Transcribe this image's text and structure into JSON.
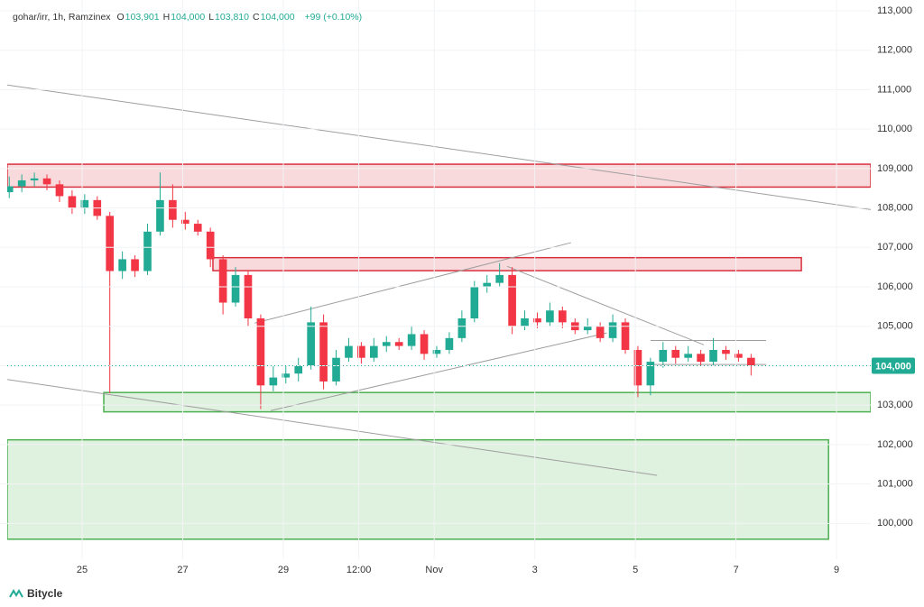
{
  "chart_data": {
    "type": "candlestick",
    "symbol": "gohar/irr, 1h, Ramzinex",
    "ohlc_header": [
      {
        "key": "O",
        "text": "103,901"
      },
      {
        "key": "H",
        "text": "104,000"
      },
      {
        "key": "L",
        "text": "103,810"
      },
      {
        "key": "C",
        "text": "104,000"
      }
    ],
    "change_text": "+99 (+0.10%)",
    "brand": "Bitycle",
    "up_color": "#22ab94",
    "down_color": "#f23645",
    "grid": true,
    "xlim": [
      23.51,
      40.68
    ],
    "xticks": [
      25,
      27,
      29,
      {
        "value": 30.5,
        "label": "12:00"
      },
      {
        "value": 32,
        "label": "Nov"
      },
      {
        "value": 34,
        "label": "3"
      },
      {
        "value": 36,
        "label": "5"
      },
      {
        "value": 38,
        "label": "7"
      },
      {
        "value": 40,
        "label": "9"
      }
    ],
    "ylim": [
      99550,
      113000
    ],
    "yticks": [
      {
        "value": 100000,
        "label": "100,000"
      },
      {
        "value": 101000,
        "label": "101,000"
      },
      {
        "value": 102000,
        "label": "102,000"
      },
      {
        "value": 103000,
        "label": "103,000"
      },
      {
        "value": 104000,
        "label": "104,000"
      },
      {
        "value": 105000,
        "label": "105,000"
      },
      {
        "value": 106000,
        "label": "106,000"
      },
      {
        "value": 107000,
        "label": "107,000"
      },
      {
        "value": 108000,
        "label": "108,000"
      },
      {
        "value": 109000,
        "label": "109,000"
      },
      {
        "value": 110000,
        "label": "110,000"
      },
      {
        "value": 111000,
        "label": "111,000"
      },
      {
        "value": 112000,
        "label": "112,000"
      },
      {
        "value": 113000,
        "label": "113,000"
      }
    ],
    "last_price": {
      "value": 104000,
      "label": "104,000"
    },
    "x": [
      23.55,
      23.8,
      24.05,
      24.3,
      24.55,
      24.8,
      25.05,
      25.3,
      25.55,
      25.8,
      26.05,
      26.3,
      26.55,
      26.8,
      27.05,
      27.3,
      27.55,
      27.8,
      28.05,
      28.3,
      28.55,
      28.8,
      29.05,
      29.3,
      29.55,
      29.8,
      30.05,
      30.3,
      30.55,
      30.8,
      31.05,
      31.3,
      31.55,
      31.8,
      32.05,
      32.3,
      32.55,
      32.8,
      33.05,
      33.3,
      33.55,
      33.8,
      34.05,
      34.3,
      34.55,
      34.8,
      35.05,
      35.3,
      35.55,
      35.8,
      36.05,
      36.3,
      36.55,
      36.8,
      37.05,
      37.3,
      37.55,
      37.8,
      38.05,
      38.3
    ],
    "open": [
      108400,
      108550,
      108700,
      108750,
      108600,
      108300,
      108000,
      108200,
      107800,
      106400,
      106700,
      106400,
      107400,
      108200,
      107700,
      107600,
      107400,
      106700,
      105600,
      106300,
      105200,
      103500,
      103700,
      103800,
      104000,
      105100,
      103600,
      104200,
      104500,
      104200,
      104500,
      104600,
      104500,
      104800,
      104300,
      104400,
      104700,
      105200,
      106000,
      106100,
      106300,
      105000,
      105200,
      105100,
      105400,
      105100,
      104900,
      105000,
      104700,
      105100,
      104400,
      103500,
      104100,
      104400,
      104200,
      104300,
      104100,
      104400,
      104300,
      104200
    ],
    "high": [
      108800,
      108850,
      108900,
      108850,
      108700,
      108450,
      108350,
      108300,
      107900,
      106900,
      106800,
      107600,
      108900,
      108600,
      107900,
      107700,
      107500,
      106800,
      106500,
      106400,
      105300,
      104000,
      104000,
      104200,
      105500,
      105300,
      104400,
      104700,
      104600,
      104700,
      104750,
      104700,
      105000,
      104900,
      104500,
      104850,
      105400,
      106150,
      106300,
      106600,
      106500,
      105400,
      105350,
      105600,
      105500,
      105200,
      105200,
      105100,
      105300,
      105200,
      104500,
      104200,
      104600,
      104500,
      104500,
      104400,
      104700,
      104500,
      104400,
      104300
    ],
    "low": [
      108250,
      108400,
      108550,
      108450,
      108150,
      107850,
      107850,
      107700,
      103300,
      106200,
      106250,
      106300,
      107300,
      107500,
      107450,
      107300,
      106500,
      105300,
      105500,
      105000,
      102900,
      103350,
      103550,
      103600,
      103900,
      103400,
      103500,
      104100,
      104050,
      104100,
      104350,
      104400,
      104400,
      104150,
      104200,
      104300,
      104600,
      105100,
      105850,
      106000,
      104800,
      104900,
      104950,
      105000,
      104950,
      104800,
      104800,
      104600,
      104600,
      104300,
      103200,
      103250,
      103950,
      104050,
      104100,
      104000,
      104000,
      104150,
      104100,
      103750
    ],
    "close": [
      108550,
      108700,
      108750,
      108600,
      108300,
      108000,
      108200,
      107800,
      106400,
      106700,
      106400,
      107400,
      108200,
      107700,
      107600,
      107400,
      106700,
      105600,
      106300,
      105200,
      103500,
      103700,
      103800,
      104000,
      105100,
      103600,
      104200,
      104500,
      104200,
      104500,
      104600,
      104500,
      104800,
      104300,
      104400,
      104700,
      105200,
      106000,
      106100,
      106300,
      105000,
      105200,
      105100,
      105400,
      105100,
      104900,
      105000,
      104700,
      105100,
      104400,
      103500,
      104100,
      104400,
      104200,
      104300,
      104100,
      104400,
      104300,
      104200,
      104000
    ],
    "zones": [
      {
        "x": [
          23.51,
          40.68
        ],
        "y": [
          108530,
          109110
        ],
        "color": "#d9303e"
      },
      {
        "x": [
          27.6,
          39.3
        ],
        "y": [
          106410,
          106740
        ],
        "color": "#d9303e"
      },
      {
        "x": [
          25.43,
          40.68
        ],
        "y": [
          102830,
          103320
        ],
        "color": "#4caf50"
      },
      {
        "x": [
          23.51,
          39.84
        ],
        "y": [
          99600,
          102120
        ],
        "color": "#4caf50"
      }
    ],
    "trendlines": [
      {
        "x": [
          23.51,
          40.68
        ],
        "y": [
          111120,
          107960
        ]
      },
      {
        "x": [
          23.51,
          36.43
        ],
        "y": [
          103650,
          101220
        ]
      },
      {
        "x": [
          28.43,
          34.72
        ],
        "y": [
          105080,
          107120
        ]
      },
      {
        "x": [
          28.75,
          35.43
        ],
        "y": [
          102860,
          104830
        ]
      },
      {
        "x": [
          33.45,
          37.36
        ],
        "y": [
          106520,
          104530
        ]
      },
      {
        "x": [
          36.3,
          38.6
        ],
        "y": [
          104640,
          104640
        ]
      },
      {
        "x": [
          36.3,
          38.6
        ],
        "y": [
          104030,
          104030
        ]
      }
    ]
  }
}
